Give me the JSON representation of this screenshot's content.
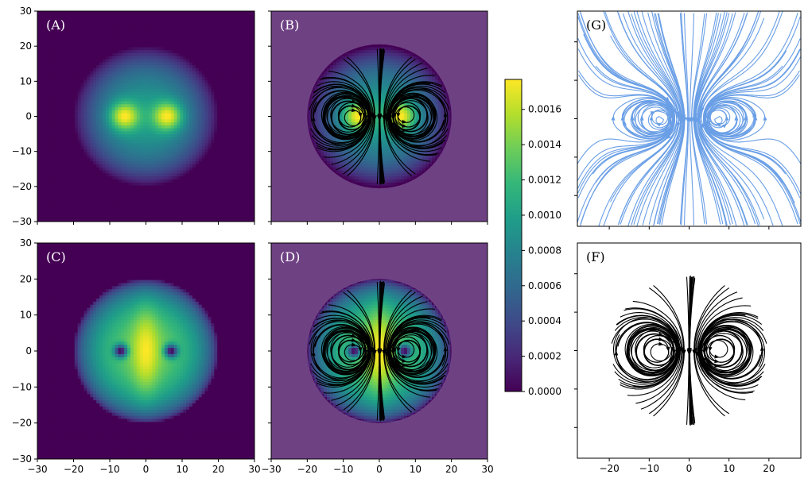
{
  "chart_data": [
    {
      "panel": "A",
      "type": "heatmap",
      "label": "(A)",
      "field": "density",
      "colormap": "viridis",
      "xlim": [
        -30,
        30
      ],
      "ylim": [
        -30,
        30
      ],
      "xticks": [
        -30,
        -20,
        -10,
        0,
        10,
        20,
        30
      ],
      "yticks": [
        -30,
        -20,
        -10,
        0,
        10,
        20,
        30
      ],
      "disk_radius": 20,
      "vortices": [
        [
          -6,
          0
        ],
        [
          6,
          0
        ]
      ],
      "description_values": {
        "background": 0.0,
        "disk_max": 0.0017,
        "vortex_cores": 0.0017
      }
    },
    {
      "panel": "B",
      "type": "heatmap",
      "label": "(B)",
      "field": "density with streamlines",
      "colormap": "viridis",
      "overlay": "streamlines",
      "xlim": [
        -30,
        30
      ],
      "ylim": [
        -30,
        30
      ],
      "yticks": [
        -30,
        -20,
        -10,
        0,
        10,
        20,
        30
      ],
      "disk_radius": 20,
      "vortices": [
        [
          -6,
          0
        ],
        [
          6,
          0
        ]
      ]
    },
    {
      "panel": "C",
      "type": "heatmap",
      "label": "(C)",
      "field": "density",
      "colormap": "viridis",
      "xlim": [
        -30,
        30
      ],
      "ylim": [
        -30,
        30
      ],
      "xticks": [
        -30,
        -20,
        -10,
        0,
        10,
        20,
        30
      ],
      "yticks": [
        -30,
        -20,
        -10,
        0,
        10,
        20,
        30
      ],
      "disk_radius": 20,
      "holes": [
        [
          -7,
          0
        ],
        [
          7,
          0
        ]
      ]
    },
    {
      "panel": "D",
      "type": "heatmap",
      "label": "(D)",
      "field": "density with streamlines",
      "colormap": "viridis",
      "overlay": "streamlines",
      "xlim": [
        -30,
        30
      ],
      "ylim": [
        -30,
        30
      ],
      "xticks": [
        -30,
        -20,
        -10,
        0,
        10,
        20,
        30
      ],
      "yticks": [
        -30,
        -20,
        -10,
        0,
        10,
        20,
        30
      ],
      "disk_radius": 20,
      "holes": [
        [
          -7,
          0
        ],
        [
          7,
          0
        ]
      ]
    },
    {
      "panel": "G",
      "type": "streamplot",
      "label": "(G)",
      "color": "#6a9fe6",
      "xlim": [
        -28,
        28
      ],
      "ylim": [
        -28,
        28
      ],
      "vortices": [
        [
          -7,
          0
        ],
        [
          7,
          0
        ]
      ]
    },
    {
      "panel": "F",
      "type": "streamplot",
      "label": "(F)",
      "color": "#000000",
      "xlim": [
        -28,
        28
      ],
      "ylim": [
        -28,
        28
      ],
      "xticks": [
        -20,
        -10,
        0,
        10,
        20
      ],
      "disk_radius": 20,
      "vortices": [
        [
          -7,
          0
        ],
        [
          7,
          0
        ]
      ]
    },
    {
      "type": "colorbar",
      "colormap": "viridis",
      "range": [
        0,
        0.00177
      ],
      "ticks": [
        "0.0000",
        "0.0002",
        "0.0004",
        "0.0006",
        "0.0008",
        "0.0010",
        "0.0012",
        "0.0014",
        "0.0016"
      ]
    }
  ],
  "colors": {
    "dim_overlay": "#7e5a95",
    "stream_dark": "#000000",
    "stream_blue": "#6a9fe6"
  }
}
